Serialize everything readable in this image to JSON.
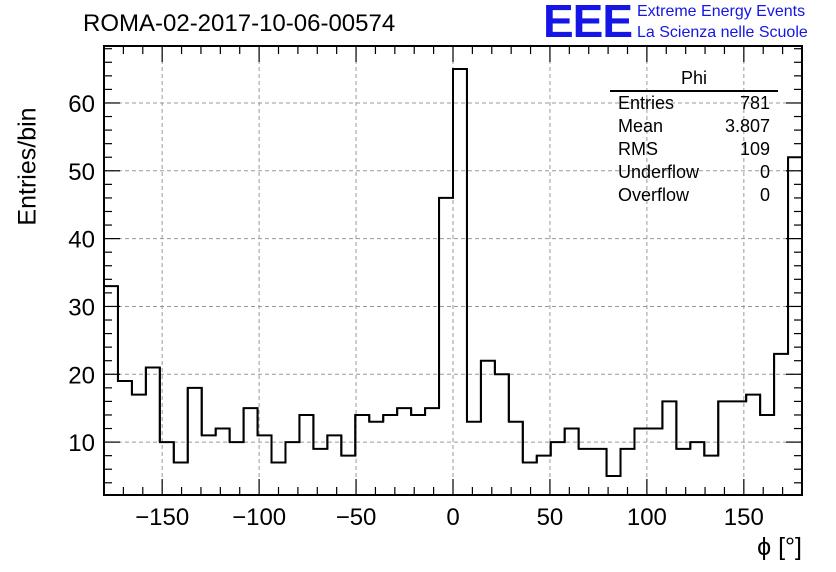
{
  "header": {
    "title": "ROMA-02-2017-10-06-00574",
    "logo_text": "EEE",
    "logo_line1": "Extreme Energy Events",
    "logo_line2": "La Scienza nelle Scuole"
  },
  "stats": {
    "title": "Phi",
    "rows": [
      {
        "label": "Entries",
        "value": "781"
      },
      {
        "label": "Mean",
        "value": "3.807"
      },
      {
        "label": "RMS",
        "value": "109"
      },
      {
        "label": "Underflow",
        "value": "0"
      },
      {
        "label": "Overflow",
        "value": "0"
      }
    ]
  },
  "colors": {
    "line": "#000000",
    "grid": "#9a9a9a",
    "logo": "#1515e6"
  },
  "chart_data": {
    "type": "bar",
    "style": "step-histogram",
    "xlabel": "ϕ [°]",
    "ylabel": "Entries/bin",
    "xlim": [
      -180,
      180
    ],
    "ylim": [
      2.2,
      68.4
    ],
    "bin_width": 7.2,
    "x_ticks": [
      -150,
      -100,
      -50,
      0,
      50,
      100,
      150
    ],
    "y_ticks": [
      10,
      20,
      30,
      40,
      50,
      60
    ],
    "grid": true,
    "values": [
      33,
      19,
      17,
      21,
      10,
      7,
      18,
      11,
      12,
      10,
      15,
      11,
      7,
      10,
      14,
      9,
      11,
      8,
      14,
      13,
      14,
      15,
      14,
      15,
      46,
      65,
      13,
      22,
      20,
      13,
      7,
      8,
      10,
      12,
      9,
      9,
      5,
      9,
      12,
      12,
      16,
      9,
      10,
      8,
      16,
      16,
      17,
      14,
      23,
      52
    ]
  }
}
